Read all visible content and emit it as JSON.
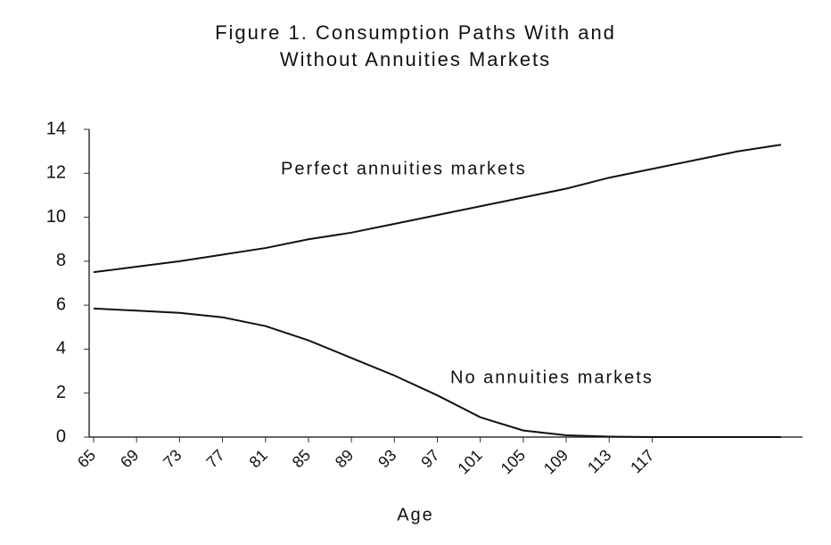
{
  "chart_data": {
    "type": "line",
    "title": "Figure 1. Consumption Paths With and Without Annuities Markets",
    "x_label": "Age",
    "x": [
      65,
      69,
      73,
      77,
      81,
      85,
      89,
      93,
      97,
      101,
      105,
      109,
      113,
      117,
      121,
      125,
      129
    ],
    "series": [
      {
        "name": "Perfect annuities markets",
        "color": "#111111",
        "values": [
          7.5,
          7.75,
          8.0,
          8.3,
          8.6,
          9.0,
          9.3,
          9.7,
          10.1,
          10.5,
          10.9,
          11.3,
          11.8,
          12.2,
          12.6,
          13.0,
          13.3
        ]
      },
      {
        "name": "No annuities markets",
        "color": "#111111",
        "values": [
          5.85,
          5.75,
          5.65,
          5.45,
          5.05,
          4.4,
          3.6,
          2.8,
          1.9,
          0.9,
          0.3,
          0.08,
          0.02,
          0,
          0,
          0,
          0
        ]
      }
    ],
    "xlim": [
      65,
      130
    ],
    "xticks": [
      65,
      69,
      73,
      77,
      81,
      85,
      89,
      93,
      97,
      101,
      105,
      109,
      113,
      117
    ],
    "ylim": [
      0,
      14
    ],
    "yticks": [
      0,
      2,
      4,
      6,
      8,
      10,
      12,
      14
    ],
    "grid": false,
    "legend": "inline"
  }
}
